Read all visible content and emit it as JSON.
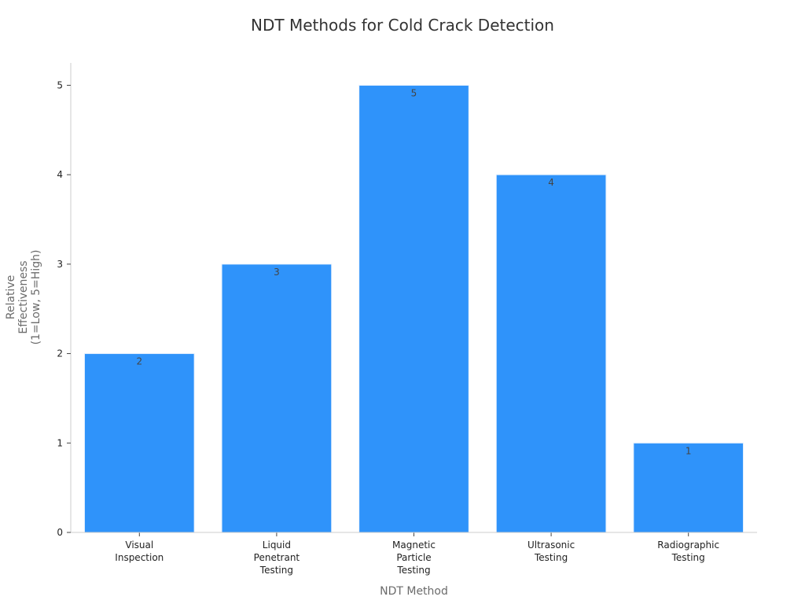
{
  "chart_data": {
    "type": "bar",
    "title": "NDT Methods for Cold Crack Detection",
    "xlabel": "NDT Method",
    "ylabel": [
      "Relative",
      "Effectiveness",
      "(1=Low, 5=High)"
    ],
    "categories": [
      [
        "Visual",
        "Inspection"
      ],
      [
        "Liquid",
        "Penetrant",
        "Testing"
      ],
      [
        "Magnetic",
        "Particle",
        "Testing"
      ],
      [
        "Ultrasonic",
        "Testing"
      ],
      [
        "Radiographic",
        "Testing"
      ]
    ],
    "values": [
      2,
      3,
      5,
      4,
      1
    ],
    "ylim": [
      0,
      5.25
    ],
    "yticks": [
      0,
      1,
      2,
      3,
      4,
      5
    ],
    "grid": false,
    "bar_color": "#2f93fa",
    "axis_color": "#cccccc"
  }
}
